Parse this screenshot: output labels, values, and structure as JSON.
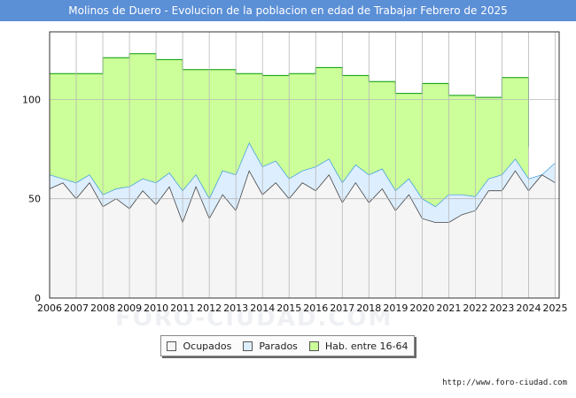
{
  "title": "Molinos de Duero - Evolucion de la poblacion en edad de Trabajar Febrero de 2025",
  "footer": {
    "url": "http://www.foro-ciudad.com"
  },
  "watermark": "FORO-CIUDAD.COM",
  "chart_data": {
    "type": "area",
    "title": "Molinos de Duero - Evolucion de la poblacion en edad de Trabajar Febrero de 2025",
    "xlabel": "",
    "ylabel": "",
    "x_ticks": [
      "2006",
      "2007",
      "2008",
      "2009",
      "2010",
      "2011",
      "2012",
      "2013",
      "2014",
      "2015",
      "2016",
      "2017",
      "2018",
      "2019",
      "2020",
      "2021",
      "2022",
      "2023",
      "2024",
      "2025"
    ],
    "y_ticks": [
      0,
      50,
      100
    ],
    "xlim": [
      2006,
      2025.15
    ],
    "ylim": [
      0,
      134
    ],
    "grid": true,
    "legend": "bottom",
    "series": [
      {
        "name": "Hab. entre 16-64",
        "color": "#ccff99",
        "line_color": "#009900",
        "step": true,
        "x": [
          2006,
          2007,
          2008,
          2009,
          2010,
          2011,
          2012,
          2013,
          2014,
          2015,
          2016,
          2017,
          2018,
          2019,
          2020,
          2021,
          2022,
          2023,
          2024
        ],
        "values": [
          113,
          113,
          121,
          123,
          120,
          115,
          115,
          113,
          112,
          113,
          116,
          112,
          109,
          103,
          108,
          102,
          101,
          111,
          76
        ]
      },
      {
        "name": "Parados",
        "color": "#ddeeff",
        "line_color": "#3399dd",
        "x": [
          2006,
          2006.5,
          2007,
          2007.5,
          2008,
          2008.5,
          2009,
          2009.5,
          2010,
          2010.5,
          2011,
          2011.5,
          2012,
          2012.5,
          2013,
          2013.5,
          2014,
          2014.5,
          2015,
          2015.5,
          2016,
          2016.5,
          2017,
          2017.5,
          2018,
          2018.5,
          2019,
          2019.5,
          2020,
          2020.5,
          2021,
          2021.5,
          2022,
          2022.5,
          2023,
          2023.5,
          2024,
          2024.5,
          2025
        ],
        "values": [
          62,
          60,
          58,
          62,
          52,
          55,
          56,
          60,
          58,
          63,
          54,
          62,
          50,
          64,
          62,
          78,
          66,
          69,
          60,
          64,
          66,
          70,
          58,
          67,
          62,
          65,
          54,
          60,
          50,
          46,
          52,
          52,
          51,
          60,
          62,
          70,
          60,
          62,
          68
        ]
      },
      {
        "name": "Ocupados",
        "color": "#f5f5f5",
        "line_color": "#444444",
        "x": [
          2006,
          2006.5,
          2007,
          2007.5,
          2008,
          2008.5,
          2009,
          2009.5,
          2010,
          2010.5,
          2011,
          2011.5,
          2012,
          2012.5,
          2013,
          2013.5,
          2014,
          2014.5,
          2015,
          2015.5,
          2016,
          2016.5,
          2017,
          2017.5,
          2018,
          2018.5,
          2019,
          2019.5,
          2020,
          2020.5,
          2021,
          2021.5,
          2022,
          2022.5,
          2023,
          2023.5,
          2024,
          2024.5,
          2025
        ],
        "values": [
          55,
          58,
          50,
          58,
          46,
          50,
          45,
          54,
          47,
          56,
          38,
          56,
          40,
          52,
          44,
          64,
          52,
          58,
          50,
          58,
          54,
          62,
          48,
          58,
          48,
          55,
          44,
          52,
          40,
          38,
          38,
          42,
          44,
          54,
          54,
          64,
          54,
          62,
          58
        ]
      }
    ]
  },
  "legend_items": [
    {
      "label": "Ocupados",
      "color": "#f5f5f5"
    },
    {
      "label": "Parados",
      "color": "#ddeeff"
    },
    {
      "label": "Hab. entre 16-64",
      "color": "#ccff99"
    }
  ]
}
